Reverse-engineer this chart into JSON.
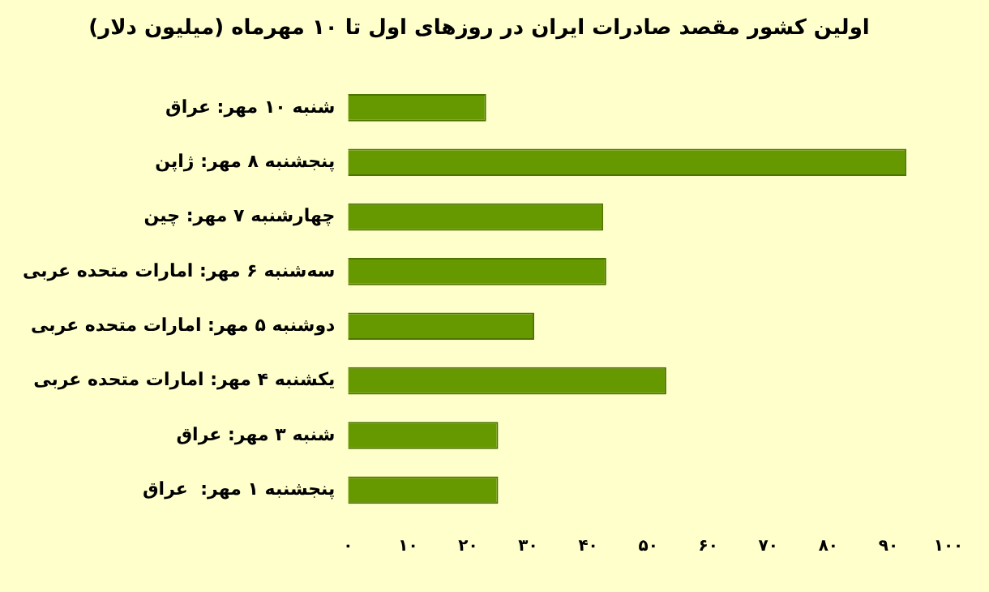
{
  "chart_data": {
    "type": "bar",
    "orientation": "horizontal",
    "title": "اولین کشور مقصد صادرات ایران در روزهای اول تا ۱۰ مهرماه (میلیون دلار)",
    "categories": [
      "شنبه ۱۰ مهر: عراق",
      "پنجشنبه ۸ مهر: ژاپن",
      "چهارشنبه ۷ مهر: چین",
      "سه‌شنبه ۶ مهر: امارات متحده عربی",
      "دوشنبه ۵ مهر: امارات متحده عربی",
      "یکشنبه ۴ مهر: امارات متحده عربی",
      "شنبه ۳ مهر: عراق",
      "پنجشنبه ۱ مهر:  عراق"
    ],
    "values": [
      23,
      93,
      42.5,
      43,
      31,
      53,
      25,
      25
    ],
    "color": "#669900",
    "xlim": [
      0,
      100
    ],
    "xticks": [
      {
        "value": 0,
        "label": "۰"
      },
      {
        "value": 10,
        "label": "۱۰"
      },
      {
        "value": 20,
        "label": "۲۰"
      },
      {
        "value": 30,
        "label": "۳۰"
      },
      {
        "value": 40,
        "label": "۴۰"
      },
      {
        "value": 50,
        "label": "۵۰"
      },
      {
        "value": 60,
        "label": "۶۰"
      },
      {
        "value": 70,
        "label": "۷۰"
      },
      {
        "value": 80,
        "label": "۸۰"
      },
      {
        "value": 90,
        "label": "۹۰"
      },
      {
        "value": 100,
        "label": "۱۰۰"
      }
    ],
    "grid": false,
    "legend": false
  }
}
